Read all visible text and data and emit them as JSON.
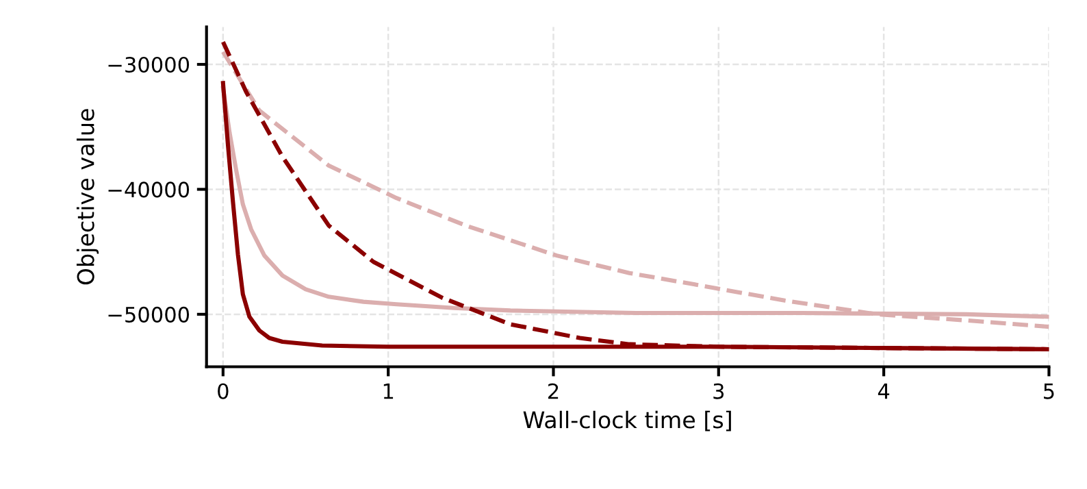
{
  "chart_data": {
    "type": "line",
    "xlabel": "Wall-clock time [s]",
    "ylabel": "Objective value",
    "xlim": [
      -0.1,
      5
    ],
    "ylim": [
      -54200,
      -27000
    ],
    "xticks": [
      0,
      1,
      2,
      3,
      4,
      5
    ],
    "yticks": [
      {
        "value": -30000,
        "label": "−30000"
      },
      {
        "value": -40000,
        "label": "−40000"
      },
      {
        "value": -50000,
        "label": "−50000"
      }
    ],
    "grid": true,
    "marker": "none",
    "series": [
      {
        "color": "#dbaeae",
        "line_style": "dashed",
        "x": [
          0,
          0.22,
          0.64,
          1.05,
          1.47,
          2.02,
          2.46,
          2.85,
          3.4,
          3.96,
          4.51,
          5
        ],
        "values": [
          -29000,
          -33700,
          -38100,
          -40700,
          -42900,
          -45300,
          -46700,
          -47600,
          -48900,
          -50000,
          -50500,
          -51000
        ]
      },
      {
        "color": "#dbaeae",
        "line_style": "solid",
        "x": [
          0,
          0.04,
          0.08,
          0.12,
          0.17,
          0.25,
          0.36,
          0.5,
          0.64,
          0.85,
          1.05,
          1.4,
          1.74,
          2.5,
          3.5,
          4.5,
          5
        ],
        "values": [
          -31900,
          -35500,
          -38500,
          -41200,
          -43200,
          -45300,
          -46900,
          -48000,
          -48600,
          -49000,
          -49200,
          -49500,
          -49700,
          -49900,
          -49900,
          -50000,
          -50200
        ]
      },
      {
        "color": "#8b0000",
        "line_style": "dashed",
        "x": [
          0,
          0.14,
          0.36,
          0.64,
          0.91,
          1.33,
          1.74,
          2.16,
          2.46,
          3,
          4,
          5
        ],
        "values": [
          -28200,
          -32200,
          -37400,
          -42900,
          -45800,
          -48700,
          -50800,
          -51900,
          -52400,
          -52600,
          -52700,
          -52800
        ]
      },
      {
        "color": "#8b0000",
        "line_style": "solid",
        "x": [
          0,
          0.03,
          0.06,
          0.09,
          0.12,
          0.16,
          0.22,
          0.28,
          0.36,
          0.6,
          1,
          2,
          3,
          4,
          5
        ],
        "values": [
          -31500,
          -36500,
          -41000,
          -45200,
          -48400,
          -50200,
          -51300,
          -51900,
          -52200,
          -52500,
          -52600,
          -52600,
          -52600,
          -52700,
          -52800
        ]
      }
    ]
  }
}
